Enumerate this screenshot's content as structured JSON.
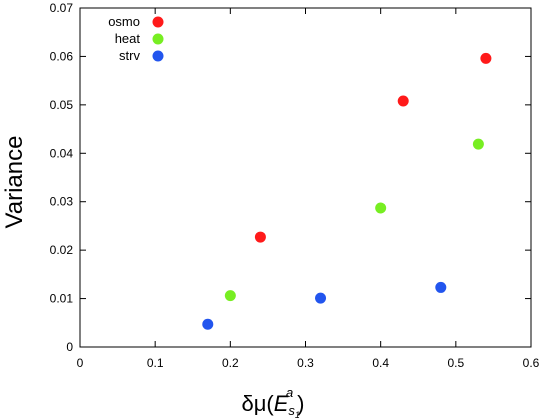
{
  "chart_data": {
    "type": "scatter",
    "title": "",
    "xlabel": "δμ(E_{s1}^a)",
    "xlabel_parts": {
      "main": "δμ(",
      "E": "E",
      "sub": "s",
      "subsub": "1",
      "sup": "a",
      "close": ")"
    },
    "ylabel": "Variance",
    "xlim": [
      0,
      0.6
    ],
    "ylim": [
      0,
      0.07
    ],
    "xticks": [
      "0",
      "0.1",
      "0.2",
      "0.3",
      "0.4",
      "0.5",
      "0.6"
    ],
    "yticks": [
      "0",
      "0.01",
      "0.02",
      "0.03",
      "0.04",
      "0.05",
      "0.06",
      "0.07"
    ],
    "xtick_values": [
      0,
      0.1,
      0.2,
      0.3,
      0.4,
      0.5,
      0.6
    ],
    "ytick_values": [
      0,
      0.01,
      0.02,
      0.03,
      0.04,
      0.05,
      0.06,
      0.07
    ],
    "grid": false,
    "legend_position": "top-left",
    "series": [
      {
        "name": "osmo",
        "color": "#ff1a1a",
        "points": [
          [
            0.24,
            0.0227
          ],
          [
            0.43,
            0.0508
          ],
          [
            0.54,
            0.0596
          ]
        ]
      },
      {
        "name": "heat",
        "color": "#77ee22",
        "points": [
          [
            0.2,
            0.0106
          ],
          [
            0.4,
            0.0287
          ],
          [
            0.53,
            0.0419
          ]
        ]
      },
      {
        "name": "strv",
        "color": "#2255ee",
        "points": [
          [
            0.17,
            0.0047
          ],
          [
            0.32,
            0.0101
          ],
          [
            0.48,
            0.0123
          ]
        ]
      }
    ]
  }
}
